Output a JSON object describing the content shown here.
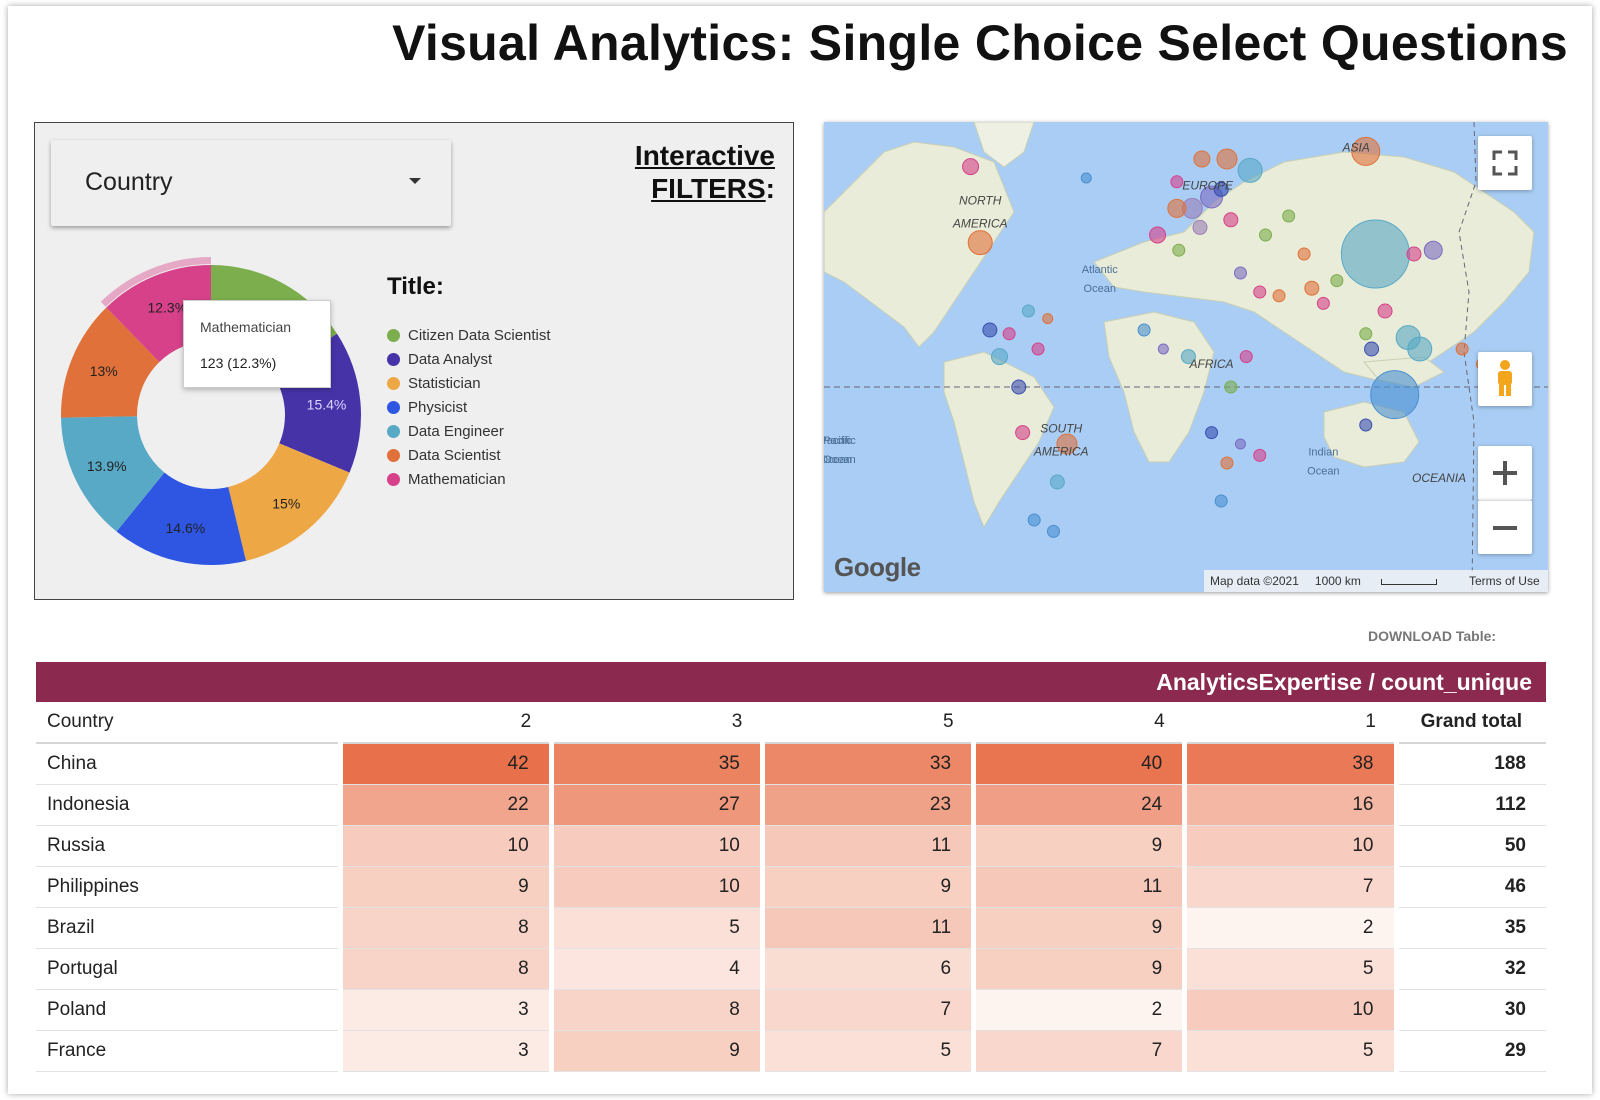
{
  "header": {
    "title": "Visual Analytics: Single Choice Select Questions"
  },
  "filter_panel": {
    "dropdown_label": "Country",
    "heading_line1": "Interactive",
    "heading_line2": "FILTERS",
    "heading_colon": ":",
    "legend_title": "Title:",
    "tooltip": {
      "label": "Mathematician",
      "value": "123 (12.3%)"
    }
  },
  "chart_data": {
    "type": "pie",
    "variant": "donut",
    "categories": [
      "Citizen Data Scientist",
      "Data Analyst",
      "Statistician",
      "Physicist",
      "Data Engineer",
      "Data Scientist",
      "Mathematician"
    ],
    "values": [
      15.9,
      15.4,
      15,
      14.6,
      13.9,
      13,
      12.3
    ],
    "slice_labels": [
      "",
      "15.4%",
      "15%",
      "14.6%",
      "13.9%",
      "13%",
      "12.3%"
    ],
    "colors": [
      "#7cae4d",
      "#4733a8",
      "#eea745",
      "#2e56e3",
      "#58a9c6",
      "#e0713a",
      "#d6418a"
    ],
    "highlighted": "Mathematician",
    "legend_position": "right"
  },
  "map": {
    "continent_labels": [
      {
        "text": "NORTH",
        "lon": -100,
        "lat": 48
      },
      {
        "text": "AMERICA",
        "lon": -100,
        "lat": 42
      },
      {
        "text": "EUROPE",
        "lon": 18,
        "lat": 52
      },
      {
        "text": "ASIA",
        "lon": 95,
        "lat": 62
      },
      {
        "text": "AFRICA",
        "lon": 20,
        "lat": 5
      },
      {
        "text": "SOUTH",
        "lon": -58,
        "lat": -12
      },
      {
        "text": "AMERICA",
        "lon": -58,
        "lat": -18
      },
      {
        "text": "OCEANIA",
        "lon": 138,
        "lat": -25
      }
    ],
    "ocean_labels": [
      {
        "text": "Atlantic",
        "lon": -38,
        "lat": 30
      },
      {
        "text": "Ocean",
        "lon": -38,
        "lat": 25
      },
      {
        "text": "Pacific",
        "lon": -175,
        "lat": -15
      },
      {
        "text": "Ocean",
        "lon": -175,
        "lat": -20
      },
      {
        "text": "Indian",
        "lon": 78,
        "lat": -18
      },
      {
        "text": "Ocean",
        "lon": 78,
        "lat": -23
      },
      {
        "text": "Pacific",
        "lon": -173,
        "lat": -15
      },
      {
        "text": "Ocean",
        "lon": -173,
        "lat": -20
      }
    ],
    "bubbles": [
      {
        "lon": 105,
        "lat": 35,
        "r": 34,
        "color": "#58a9c6"
      },
      {
        "lon": 115,
        "lat": -2,
        "r": 24,
        "color": "#4a8fd0"
      },
      {
        "lon": 100,
        "lat": 62,
        "r": 14,
        "color": "#e0713a"
      },
      {
        "lon": 40,
        "lat": 57,
        "r": 12,
        "color": "#58a9c6"
      },
      {
        "lon": 28,
        "lat": 60,
        "r": 10,
        "color": "#e0713a"
      },
      {
        "lon": 122,
        "lat": 13,
        "r": 12,
        "color": "#58a9c6"
      },
      {
        "lon": -100,
        "lat": 38,
        "r": 12,
        "color": "#e0713a"
      },
      {
        "lon": -105,
        "lat": 58,
        "r": 8,
        "color": "#d6418a"
      },
      {
        "lon": 20,
        "lat": 50,
        "r": 11,
        "color": "#7b6cc2"
      },
      {
        "lon": 10,
        "lat": 47,
        "r": 10,
        "color": "#9a7fb8"
      },
      {
        "lon": 2,
        "lat": 47,
        "r": 9,
        "color": "#e0713a"
      },
      {
        "lon": -8,
        "lat": 40,
        "r": 8,
        "color": "#d6418a"
      },
      {
        "lon": 30,
        "lat": 44,
        "r": 7,
        "color": "#d6418a"
      },
      {
        "lon": 48,
        "lat": 40,
        "r": 6,
        "color": "#7cae4d"
      },
      {
        "lon": 72,
        "lat": 26,
        "r": 7,
        "color": "#e0713a"
      },
      {
        "lon": 78,
        "lat": 22,
        "r": 6,
        "color": "#d6418a"
      },
      {
        "lon": 135,
        "lat": 36,
        "r": 9,
        "color": "#7b6cc2"
      },
      {
        "lon": 125,
        "lat": 35,
        "r": 7,
        "color": "#d6418a"
      },
      {
        "lon": 110,
        "lat": 20,
        "r": 7,
        "color": "#d6418a"
      },
      {
        "lon": 103,
        "lat": 10,
        "r": 7,
        "color": "#3a4eb0"
      },
      {
        "lon": 128,
        "lat": 10,
        "r": 12,
        "color": "#58a9c6"
      },
      {
        "lon": 100,
        "lat": 14,
        "r": 6,
        "color": "#7cae4d"
      },
      {
        "lon": 150,
        "lat": 10,
        "r": 6,
        "color": "#e0713a"
      },
      {
        "lon": 160,
        "lat": 6,
        "r": 5,
        "color": "#e0713a"
      },
      {
        "lon": 175,
        "lat": 4,
        "r": 5,
        "color": "#d6418a"
      },
      {
        "lon": 176,
        "lat": -38,
        "r": 6,
        "color": "#7b6cc2"
      },
      {
        "lon": 100,
        "lat": -10,
        "r": 6,
        "color": "#3a4eb0"
      },
      {
        "lon": 35,
        "lat": 30,
        "r": 6,
        "color": "#7b6cc2"
      },
      {
        "lon": 45,
        "lat": 25,
        "r": 6,
        "color": "#d6418a"
      },
      {
        "lon": 55,
        "lat": 24,
        "r": 6,
        "color": "#e0713a"
      },
      {
        "lon": 3,
        "lat": 36,
        "r": 6,
        "color": "#7cae4d"
      },
      {
        "lon": -15,
        "lat": 15,
        "r": 6,
        "color": "#4a8fd0"
      },
      {
        "lon": -5,
        "lat": 10,
        "r": 5,
        "color": "#7b6cc2"
      },
      {
        "lon": 8,
        "lat": 8,
        "r": 7,
        "color": "#58a9c6"
      },
      {
        "lon": 30,
        "lat": 0,
        "r": 6,
        "color": "#7cae4d"
      },
      {
        "lon": 38,
        "lat": 8,
        "r": 6,
        "color": "#d6418a"
      },
      {
        "lon": 20,
        "lat": -12,
        "r": 6,
        "color": "#3a4eb0"
      },
      {
        "lon": 28,
        "lat": -20,
        "r": 6,
        "color": "#e0713a"
      },
      {
        "lon": 45,
        "lat": -18,
        "r": 6,
        "color": "#d6418a"
      },
      {
        "lon": 25,
        "lat": -30,
        "r": 6,
        "color": "#4a8fd0"
      },
      {
        "lon": 35,
        "lat": -15,
        "r": 5,
        "color": "#7b6cc2"
      },
      {
        "lon": -75,
        "lat": 20,
        "r": 6,
        "color": "#58a9c6"
      },
      {
        "lon": -85,
        "lat": 14,
        "r": 6,
        "color": "#d6418a"
      },
      {
        "lon": -70,
        "lat": 10,
        "r": 6,
        "color": "#d6418a"
      },
      {
        "lon": -65,
        "lat": 18,
        "r": 5,
        "color": "#e0713a"
      },
      {
        "lon": -90,
        "lat": 8,
        "r": 8,
        "color": "#58a9c6"
      },
      {
        "lon": -80,
        "lat": 0,
        "r": 7,
        "color": "#3a4eb0"
      },
      {
        "lon": -78,
        "lat": -12,
        "r": 7,
        "color": "#d6418a"
      },
      {
        "lon": -55,
        "lat": -15,
        "r": 10,
        "color": "#e0713a"
      },
      {
        "lon": -60,
        "lat": -25,
        "r": 7,
        "color": "#58a9c6"
      },
      {
        "lon": -72,
        "lat": -35,
        "r": 6,
        "color": "#4a8fd0"
      },
      {
        "lon": -62,
        "lat": -38,
        "r": 6,
        "color": "#4a8fd0"
      },
      {
        "lon": -45,
        "lat": 55,
        "r": 5,
        "color": "#4a8fd0"
      },
      {
        "lon": -95,
        "lat": 15,
        "r": 7,
        "color": "#3a4eb0"
      },
      {
        "lon": 15,
        "lat": 60,
        "r": 8,
        "color": "#e0713a"
      },
      {
        "lon": 2,
        "lat": 54,
        "r": 6,
        "color": "#d6418a"
      },
      {
        "lon": 14,
        "lat": 42,
        "r": 7,
        "color": "#9a7fb8"
      },
      {
        "lon": 25,
        "lat": 52,
        "r": 7,
        "color": "#3a4eb0"
      },
      {
        "lon": 60,
        "lat": 45,
        "r": 6,
        "color": "#7cae4d"
      },
      {
        "lon": 68,
        "lat": 35,
        "r": 6,
        "color": "#e0713a"
      },
      {
        "lon": 85,
        "lat": 28,
        "r": 6,
        "color": "#7cae4d"
      }
    ],
    "attribution": "Map data ©2021",
    "scale_label": "1000 km",
    "terms": "Terms of Use",
    "logo": "Google"
  },
  "download_label": "DOWNLOAD Table:",
  "table": {
    "banner": "AnalyticsExpertise / count_unique",
    "columns": [
      "Country",
      "2",
      "3",
      "5",
      "4",
      "1",
      "Grand total"
    ],
    "rows": [
      {
        "country": "China",
        "values": [
          42,
          35,
          33,
          40,
          38
        ],
        "total": 188
      },
      {
        "country": "Indonesia",
        "values": [
          22,
          27,
          23,
          24,
          16
        ],
        "total": 112
      },
      {
        "country": "Russia",
        "values": [
          10,
          10,
          11,
          9,
          10
        ],
        "total": 50
      },
      {
        "country": "Philippines",
        "values": [
          9,
          10,
          9,
          11,
          7
        ],
        "total": 46
      },
      {
        "country": "Brazil",
        "values": [
          8,
          5,
          11,
          9,
          2
        ],
        "total": 35
      },
      {
        "country": "Portugal",
        "values": [
          8,
          4,
          6,
          9,
          5
        ],
        "total": 32
      },
      {
        "country": "Poland",
        "values": [
          3,
          8,
          7,
          2,
          10
        ],
        "total": 30
      },
      {
        "country": "France",
        "values": [
          3,
          9,
          5,
          7,
          5
        ],
        "total": 29
      }
    ],
    "heat_color_max": "#e8704a",
    "heat_color_min": "#fdf3ef"
  }
}
